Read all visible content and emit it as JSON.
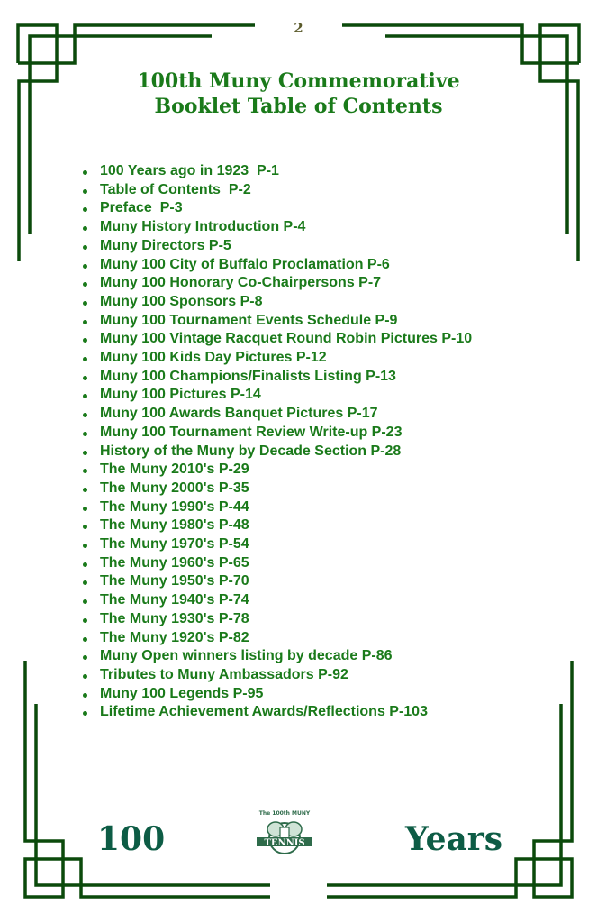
{
  "page_number": "2",
  "title_line1": "100th Muny Commemorative",
  "title_line2": "Booklet Table of Contents",
  "toc": [
    "100 Years ago in 1923  P-1",
    "Table of Contents  P-2",
    "Preface  P-3",
    "Muny History Introduction P-4",
    "Muny Directors P-5",
    "Muny 100 City of Buffalo Proclamation P-6",
    "Muny 100 Honorary Co-Chairpersons P-7",
    "Muny 100 Sponsors P-8",
    "Muny 100 Tournament Events Schedule P-9",
    "Muny 100 Vintage Racquet Round Robin Pictures P-10",
    "Muny 100 Kids Day Pictures P-12",
    "Muny 100 Champions/Finalists Listing P-13",
    "Muny 100 Pictures P-14",
    "Muny 100 Awards Banquet Pictures P-17",
    "Muny 100 Tournament Review Write-up P-23",
    "History of the Muny by Decade Section P-28",
    "The Muny 2010's P-29",
    "The Muny 2000's P-35",
    "The Muny 1990's P-44",
    "The Muny 1980's P-48",
    "The Muny 1970's P-54",
    "The Muny 1960's P-65",
    "The Muny 1950's P-70",
    "The Muny 1940's P-74",
    "The Muny 1930's P-78",
    "The Muny 1920's P-82",
    "Muny Open winners listing by decade P-86",
    "Tributes to Muny Ambassadors P-92",
    "Muny 100 Legends P-95",
    "Lifetime Achievement Awards/Reflections P-103"
  ],
  "footer_left": "100",
  "footer_right": "Years",
  "logo": {
    "top_text": "The 100th MUNY",
    "main_text": "TENNIS"
  },
  "colors": {
    "text": "#1a7a1a",
    "border": "#0b4a0b",
    "footer": "#0d5c45"
  }
}
